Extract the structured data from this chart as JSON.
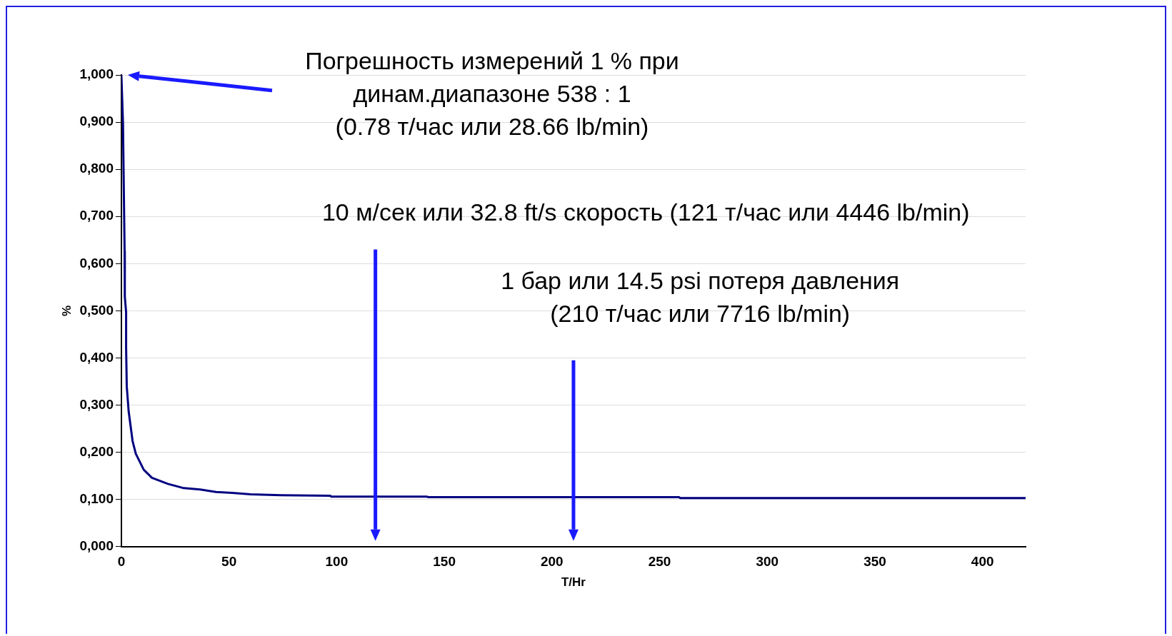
{
  "chart_data": {
    "type": "line",
    "xlabel": "T/Hr",
    "ylabel": "%",
    "annotations": [
      "Погрешность измерений 1 % при\nдинам.диапазоне 538 : 1\n(0.78 т/час или 28.66 lb/min)",
      "10 м/сек или 32.8 ft/s скорость (121 т/час или 4446 lb/min)",
      "1 бар или 14.5 psi потеря давления\n(210 т/час или 7716 lb/min)"
    ],
    "series": [
      {
        "color": "#000080",
        "x": [
          0,
          0.75,
          1.5,
          1.6,
          2.2,
          2.2,
          2.5,
          3.4,
          5.2,
          6.7,
          10.4,
          14.2,
          21.6,
          29,
          36.6,
          44,
          51.5,
          60,
          74,
          97,
          97.5,
          142,
          142.5,
          259,
          259.5,
          420
        ],
        "values": [
          1.0,
          0.898,
          0.626,
          0.53,
          0.497,
          0.422,
          0.34,
          0.286,
          0.224,
          0.197,
          0.163,
          0.146,
          0.133,
          0.124,
          0.121,
          0.116,
          0.114,
          0.111,
          0.109,
          0.108,
          0.106,
          0.106,
          0.105,
          0.105,
          0.103,
          0.103
        ]
      }
    ],
    "xlim": [
      0,
      420
    ],
    "xticks": [
      0,
      50,
      100,
      150,
      200,
      250,
      300,
      350,
      400
    ],
    "ylim": [
      0,
      1
    ],
    "yticks": [
      {
        "value": 0,
        "label": "0,000"
      },
      {
        "value": 0.1,
        "label": "0,100"
      },
      {
        "value": 0.2,
        "label": "0,200"
      },
      {
        "value": 0.3,
        "label": "0,300"
      },
      {
        "value": 0.4,
        "label": "0,400"
      },
      {
        "value": 0.5,
        "label": "0,500"
      },
      {
        "value": 0.6,
        "label": "0,600"
      },
      {
        "value": 0.7,
        "label": "0,700"
      },
      {
        "value": 0.8,
        "label": "0,800"
      },
      {
        "value": 0.9,
        "label": "0,900"
      },
      {
        "value": 1,
        "label": "1,000"
      }
    ],
    "grid": "y",
    "legend": false,
    "marker": "none",
    "line_style": "solid"
  }
}
